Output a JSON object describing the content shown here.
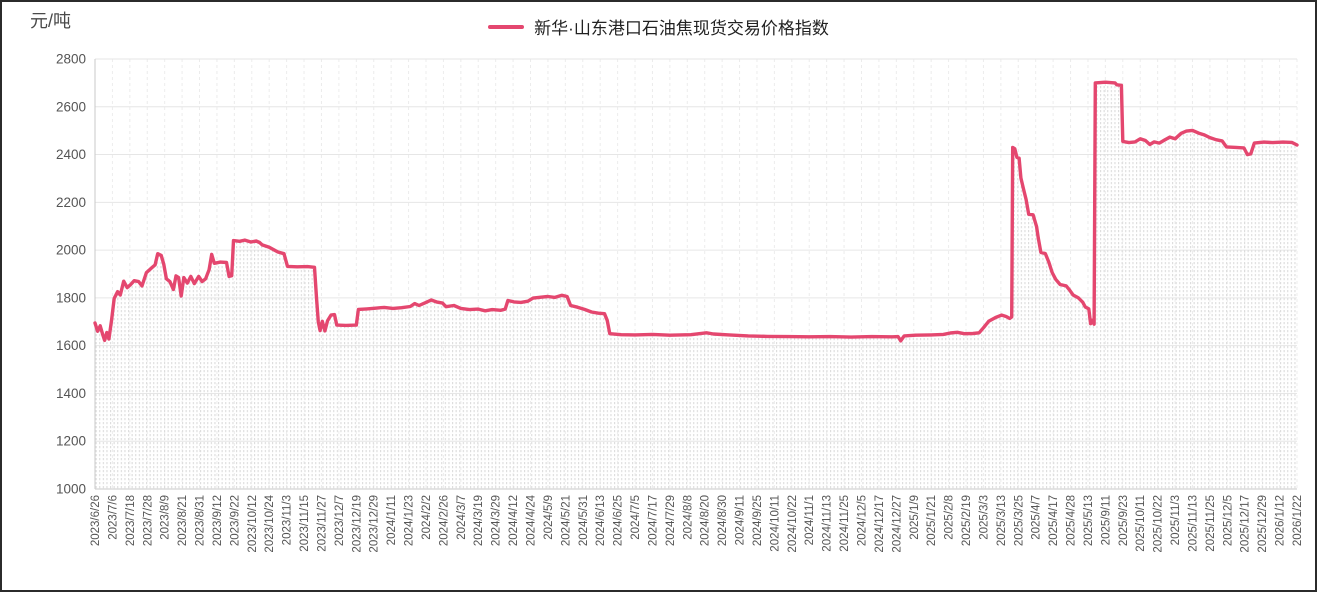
{
  "chart_data": {
    "type": "line",
    "title": "新华·山东港口石油焦现货交易价格指数",
    "unit_label": "元/吨",
    "legend_label": "新华·山东港口石油焦现货交易价格指数",
    "line_color": "#e4476f",
    "grid_h_color": "#e6e6e6",
    "grid_v_color": "#ececec",
    "axis_color": "#c9c9c9",
    "area_pattern": "vertical-dotted-gray",
    "area_dot_color": "#dcdcdc",
    "ylim": [
      1000,
      2800
    ],
    "ytick_step": 200,
    "yticks": [
      1000,
      1200,
      1400,
      1600,
      1800,
      2000,
      2200,
      2400,
      2600,
      2800
    ],
    "legend_position": "top-center",
    "grid": "on",
    "x_labels": [
      "2023/6/26",
      "2023/7/6",
      "2023/7/18",
      "2023/7/28",
      "2023/8/9",
      "2023/8/21",
      "2023/8/31",
      "2023/9/12",
      "2023/9/22",
      "2023/10/12",
      "2023/10/24",
      "2023/11/3",
      "2023/11/15",
      "2023/11/27",
      "2023/12/7",
      "2023/12/19",
      "2023/12/29",
      "2024/1/11",
      "2024/1/23",
      "2024/2/2",
      "2024/2/26",
      "2024/3/7",
      "2024/3/19",
      "2024/3/29",
      "2024/4/12",
      "2024/4/24",
      "2024/5/9",
      "2024/5/21",
      "2024/5/31",
      "2024/6/13",
      "2024/6/25",
      "2024/7/5",
      "2024/7/17",
      "2024/7/29",
      "2024/8/8",
      "2024/8/20",
      "2024/8/30",
      "2024/9/11",
      "2024/9/25",
      "2024/10/11",
      "2024/10/22",
      "2024/11/1",
      "2024/11/13",
      "2024/11/25",
      "2024/12/5",
      "2024/12/17",
      "2024/12/27",
      "2025/1/9",
      "2025/1/21",
      "2025/2/8",
      "2025/2/19",
      "2025/3/3",
      "2025/3/13",
      "2025/3/25",
      "2025/4/7",
      "2025/4/17",
      "2025/4/28",
      "2025/5/13",
      "2025/9/11",
      "2025/9/23",
      "2025/10/11",
      "2025/10/22",
      "2025/11/3",
      "2025/11/13",
      "2025/11/25",
      "2025/12/5",
      "2025/12/17",
      "2025/12/29",
      "2026/1/12",
      "2026/1/22"
    ],
    "series": [
      {
        "name": "新华·山东港口石油焦现货交易价格指数",
        "points": [
          [
            0,
            1695
          ],
          [
            0.15,
            1660
          ],
          [
            0.3,
            1683
          ],
          [
            0.45,
            1645
          ],
          [
            0.55,
            1622
          ],
          [
            0.68,
            1655
          ],
          [
            0.8,
            1628
          ],
          [
            0.95,
            1705
          ],
          [
            1.1,
            1798
          ],
          [
            1.3,
            1826
          ],
          [
            1.45,
            1812
          ],
          [
            1.65,
            1870
          ],
          [
            1.85,
            1843
          ],
          [
            2.05,
            1856
          ],
          [
            2.25,
            1872
          ],
          [
            2.5,
            1868
          ],
          [
            2.7,
            1850
          ],
          [
            2.95,
            1906
          ],
          [
            3.2,
            1922
          ],
          [
            3.45,
            1938
          ],
          [
            3.6,
            1985
          ],
          [
            3.8,
            1978
          ],
          [
            3.95,
            1940
          ],
          [
            4.1,
            1880
          ],
          [
            4.3,
            1868
          ],
          [
            4.5,
            1835
          ],
          [
            4.65,
            1892
          ],
          [
            4.8,
            1885
          ],
          [
            4.95,
            1808
          ],
          [
            5.1,
            1885
          ],
          [
            5.3,
            1862
          ],
          [
            5.5,
            1890
          ],
          [
            5.7,
            1860
          ],
          [
            5.95,
            1890
          ],
          [
            6.15,
            1868
          ],
          [
            6.35,
            1880
          ],
          [
            6.55,
            1918
          ],
          [
            6.7,
            1982
          ],
          [
            6.85,
            1945
          ],
          [
            7.2,
            1950
          ],
          [
            7.55,
            1948
          ],
          [
            7.7,
            1890
          ],
          [
            7.85,
            1893
          ],
          [
            7.95,
            2040
          ],
          [
            8.3,
            2037
          ],
          [
            8.6,
            2042
          ],
          [
            8.95,
            2034
          ],
          [
            9.25,
            2038
          ],
          [
            9.45,
            2032
          ],
          [
            9.6,
            2022
          ],
          [
            10,
            2012
          ],
          [
            10.5,
            1992
          ],
          [
            10.85,
            1985
          ],
          [
            11.05,
            1932
          ],
          [
            11.6,
            1930
          ],
          [
            12.2,
            1931
          ],
          [
            12.6,
            1928
          ],
          [
            12.72,
            1795
          ],
          [
            12.82,
            1700
          ],
          [
            12.92,
            1663
          ],
          [
            13.05,
            1702
          ],
          [
            13.2,
            1662
          ],
          [
            13.35,
            1705
          ],
          [
            13.55,
            1728
          ],
          [
            13.75,
            1730
          ],
          [
            13.88,
            1686
          ],
          [
            14.4,
            1685
          ],
          [
            15,
            1686
          ],
          [
            15.12,
            1752
          ],
          [
            15.6,
            1754
          ],
          [
            16.1,
            1757
          ],
          [
            16.6,
            1760
          ],
          [
            17.1,
            1756
          ],
          [
            17.6,
            1759
          ],
          [
            18.1,
            1764
          ],
          [
            18.35,
            1776
          ],
          [
            18.6,
            1768
          ],
          [
            19,
            1781
          ],
          [
            19.3,
            1791
          ],
          [
            19.6,
            1783
          ],
          [
            19.95,
            1778
          ],
          [
            20.15,
            1763
          ],
          [
            20.6,
            1768
          ],
          [
            21,
            1756
          ],
          [
            21.5,
            1751
          ],
          [
            22,
            1753
          ],
          [
            22.4,
            1746
          ],
          [
            22.8,
            1751
          ],
          [
            23.3,
            1748
          ],
          [
            23.55,
            1753
          ],
          [
            23.7,
            1789
          ],
          [
            24.05,
            1783
          ],
          [
            24.45,
            1781
          ],
          [
            24.85,
            1786
          ],
          [
            25.15,
            1799
          ],
          [
            25.6,
            1803
          ],
          [
            26,
            1806
          ],
          [
            26.4,
            1802
          ],
          [
            26.8,
            1811
          ],
          [
            27.1,
            1806
          ],
          [
            27.3,
            1768
          ],
          [
            27.7,
            1761
          ],
          [
            28.1,
            1752
          ],
          [
            28.5,
            1741
          ],
          [
            28.9,
            1736
          ],
          [
            29.25,
            1734
          ],
          [
            29.4,
            1706
          ],
          [
            29.55,
            1650
          ],
          [
            30.2,
            1646
          ],
          [
            31,
            1645
          ],
          [
            32,
            1647
          ],
          [
            33,
            1644
          ],
          [
            34.2,
            1646
          ],
          [
            35.1,
            1654
          ],
          [
            35.5,
            1649
          ],
          [
            36.4,
            1645
          ],
          [
            37.5,
            1641
          ],
          [
            38.6,
            1639
          ],
          [
            39.8,
            1638
          ],
          [
            41,
            1637
          ],
          [
            42.2,
            1638
          ],
          [
            43.4,
            1636
          ],
          [
            44.6,
            1638
          ],
          [
            45.8,
            1637
          ],
          [
            46.1,
            1638
          ],
          [
            46.25,
            1620
          ],
          [
            46.45,
            1641
          ],
          [
            47.1,
            1644
          ],
          [
            48,
            1645
          ],
          [
            48.7,
            1647
          ],
          [
            49.1,
            1653
          ],
          [
            49.5,
            1656
          ],
          [
            49.9,
            1650
          ],
          [
            50.4,
            1651
          ],
          [
            50.75,
            1654
          ],
          [
            51,
            1675
          ],
          [
            51.3,
            1702
          ],
          [
            51.7,
            1718
          ],
          [
            52.05,
            1728
          ],
          [
            52.3,
            1722
          ],
          [
            52.5,
            1714
          ],
          [
            52.62,
            1720
          ],
          [
            52.68,
            2430
          ],
          [
            52.8,
            2424
          ],
          [
            52.92,
            2388
          ],
          [
            53.05,
            2385
          ],
          [
            53.15,
            2302
          ],
          [
            53.3,
            2256
          ],
          [
            53.45,
            2212
          ],
          [
            53.6,
            2150
          ],
          [
            53.85,
            2148
          ],
          [
            54.05,
            2098
          ],
          [
            54.15,
            2050
          ],
          [
            54.3,
            1990
          ],
          [
            54.55,
            1986
          ],
          [
            54.75,
            1950
          ],
          [
            54.95,
            1906
          ],
          [
            55.15,
            1878
          ],
          [
            55.4,
            1856
          ],
          [
            55.75,
            1850
          ],
          [
            55.95,
            1832
          ],
          [
            56.15,
            1812
          ],
          [
            56.45,
            1800
          ],
          [
            56.7,
            1782
          ],
          [
            56.85,
            1762
          ],
          [
            57.05,
            1754
          ],
          [
            57.15,
            1692
          ],
          [
            57.25,
            1706
          ],
          [
            57.35,
            1690
          ],
          [
            57.42,
            2700
          ],
          [
            58,
            2703
          ],
          [
            58.55,
            2700
          ],
          [
            58.65,
            2692
          ],
          [
            58.92,
            2690
          ],
          [
            59,
            2455
          ],
          [
            59.35,
            2450
          ],
          [
            59.7,
            2453
          ],
          [
            60,
            2466
          ],
          [
            60.3,
            2459
          ],
          [
            60.55,
            2442
          ],
          [
            60.8,
            2453
          ],
          [
            61.1,
            2448
          ],
          [
            61.4,
            2461
          ],
          [
            61.7,
            2473
          ],
          [
            62,
            2466
          ],
          [
            62.35,
            2489
          ],
          [
            62.65,
            2498
          ],
          [
            63,
            2501
          ],
          [
            63.35,
            2490
          ],
          [
            63.65,
            2483
          ],
          [
            64,
            2471
          ],
          [
            64.35,
            2462
          ],
          [
            64.7,
            2457
          ],
          [
            64.95,
            2432
          ],
          [
            65.5,
            2430
          ],
          [
            65.95,
            2428
          ],
          [
            66.15,
            2400
          ],
          [
            66.35,
            2403
          ],
          [
            66.55,
            2448
          ],
          [
            67.1,
            2452
          ],
          [
            67.6,
            2450
          ],
          [
            68.2,
            2452
          ],
          [
            68.7,
            2451
          ],
          [
            69,
            2440
          ]
        ]
      }
    ]
  }
}
